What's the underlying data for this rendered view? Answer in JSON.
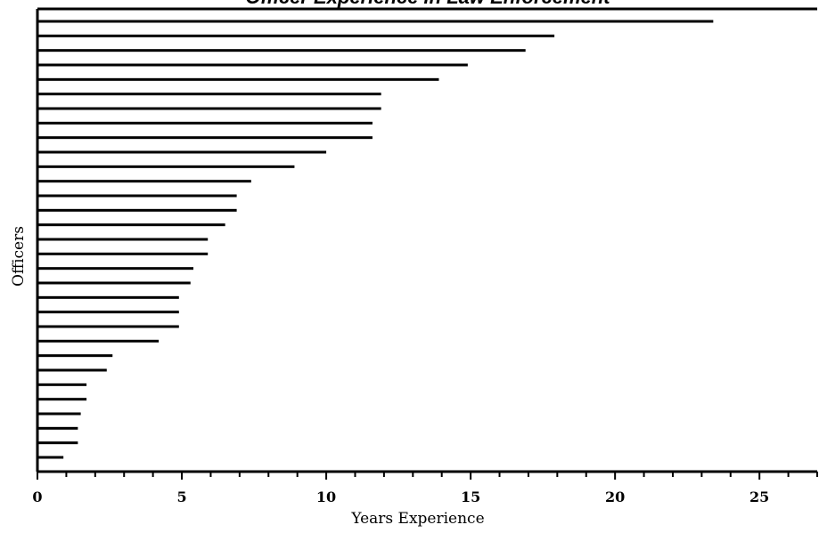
{
  "chart_data": {
    "type": "bar",
    "orientation": "horizontal",
    "title": "Officer Experience in Law Enforcement",
    "xlabel": "Years Experience",
    "ylabel": "Officers",
    "xlim": [
      0,
      27
    ],
    "x_ticks": [
      0,
      5,
      10,
      15,
      20,
      25
    ],
    "grid": false,
    "values": [
      23.4,
      17.9,
      16.9,
      14.9,
      13.9,
      11.9,
      11.9,
      11.6,
      11.6,
      10.0,
      8.9,
      7.4,
      6.9,
      6.9,
      6.5,
      5.9,
      5.9,
      5.4,
      5.3,
      4.9,
      4.9,
      4.9,
      4.2,
      2.6,
      2.4,
      1.7,
      1.7,
      1.5,
      1.4,
      1.4,
      0.9
    ]
  }
}
